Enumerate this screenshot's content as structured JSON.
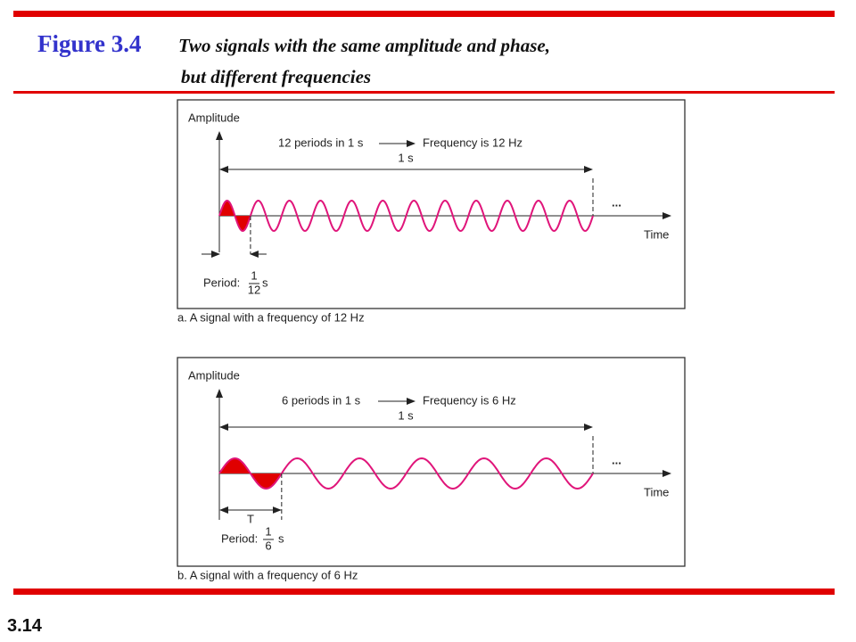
{
  "header": {
    "figure_label": "Figure 3.4",
    "caption_lines": [
      "Two signals with the same amplitude and phase,",
      "but different frequencies"
    ]
  },
  "panels": [
    {
      "y_axis_label": "Amplitude",
      "periods_text": "12 periods in 1 s",
      "frequency_text": "Frequency is 12 Hz",
      "duration_label": "1 s",
      "ellipsis": "...",
      "x_axis_label": "Time",
      "period_label": "Period:",
      "period_numerator": "1",
      "period_denominator": "12",
      "period_unit": "s",
      "caption": "a. A signal with a frequency of 12 Hz"
    },
    {
      "y_axis_label": "Amplitude",
      "periods_text": "6 periods in 1 s",
      "frequency_text": "Frequency is 6 Hz",
      "duration_label": "1 s",
      "ellipsis": "...",
      "x_axis_label": "Time",
      "period_symbol": "T",
      "period_label": "Period:",
      "period_numerator": "1",
      "period_denominator": "6",
      "period_unit": "s",
      "caption": "b. A signal with a frequency of 6 Hz"
    }
  ],
  "footer": {
    "slide_number": "3.14"
  }
}
